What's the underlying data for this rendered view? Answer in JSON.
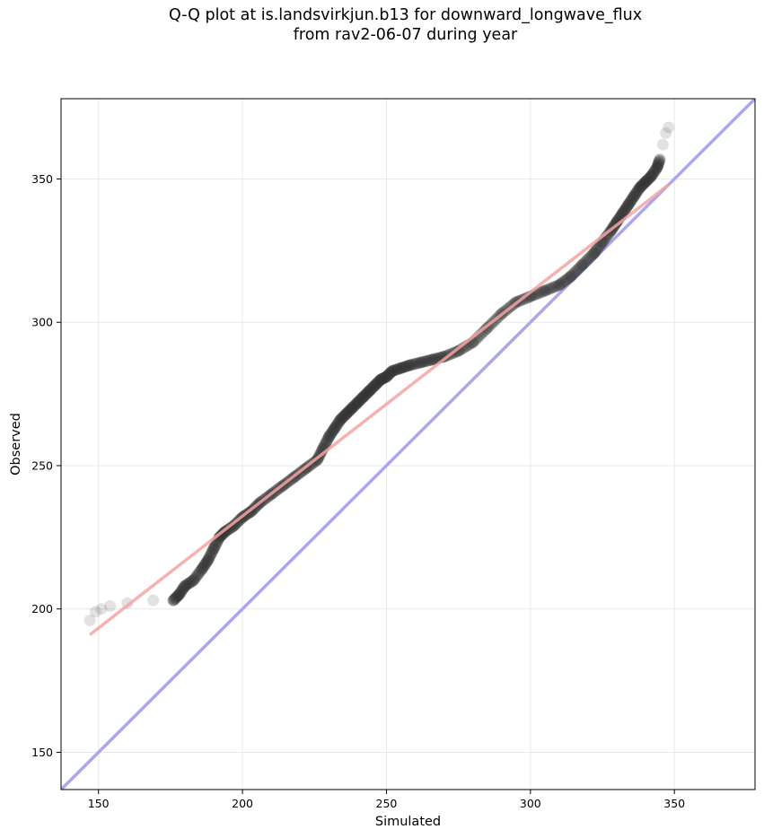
{
  "chart_data": {
    "type": "scatter",
    "title": "Q-Q plot at is.landsvirkjun.b13 for downward_longwave_flux",
    "subtitle": "from rav2-06-07 during year",
    "xlabel": "Simulated",
    "ylabel": "Observed",
    "xlim": [
      137,
      378
    ],
    "ylim": [
      137,
      378
    ],
    "xticks": [
      150,
      200,
      250,
      300,
      350
    ],
    "yticks": [
      150,
      200,
      250,
      300,
      350
    ],
    "grid": true,
    "colors": {
      "points": "#333333",
      "fit_line": "#f5a3a3",
      "identity_line": "#a8a8f0",
      "grid": "#e8e8e8"
    },
    "quantile_points": {
      "x": [
        147,
        149,
        151,
        154,
        160,
        169,
        176,
        178,
        180,
        183,
        186,
        188,
        190,
        192,
        194,
        197,
        200,
        203,
        206,
        210,
        214,
        218,
        222,
        226,
        228,
        230,
        232,
        234,
        236,
        238,
        240,
        242,
        244,
        246,
        248,
        250,
        252,
        255,
        258,
        262,
        266,
        270,
        275,
        280,
        285,
        290,
        295,
        300,
        305,
        310,
        314,
        318,
        322,
        325,
        328,
        330,
        332,
        334,
        336,
        338,
        340,
        342,
        344,
        345,
        346,
        347,
        348
      ],
      "y": [
        196,
        199,
        200,
        201,
        202,
        203,
        203,
        205,
        208,
        210,
        214,
        217,
        221,
        225,
        227,
        229,
        232,
        234,
        237,
        240,
        243,
        246,
        249,
        252,
        256,
        260,
        263,
        266,
        268,
        270,
        272,
        274,
        276,
        278,
        280,
        281,
        283,
        284,
        285,
        286,
        287,
        288,
        290,
        293,
        298,
        303,
        307,
        309,
        311,
        313,
        316,
        320,
        324,
        328,
        332,
        335,
        338,
        341,
        344,
        347,
        349,
        351,
        354,
        357,
        362,
        366,
        368
      ]
    },
    "fit_line": {
      "x": [
        147,
        348
      ],
      "y": [
        191,
        348
      ]
    },
    "identity_line": {
      "x": [
        137,
        378
      ],
      "y": [
        137,
        378
      ]
    }
  }
}
